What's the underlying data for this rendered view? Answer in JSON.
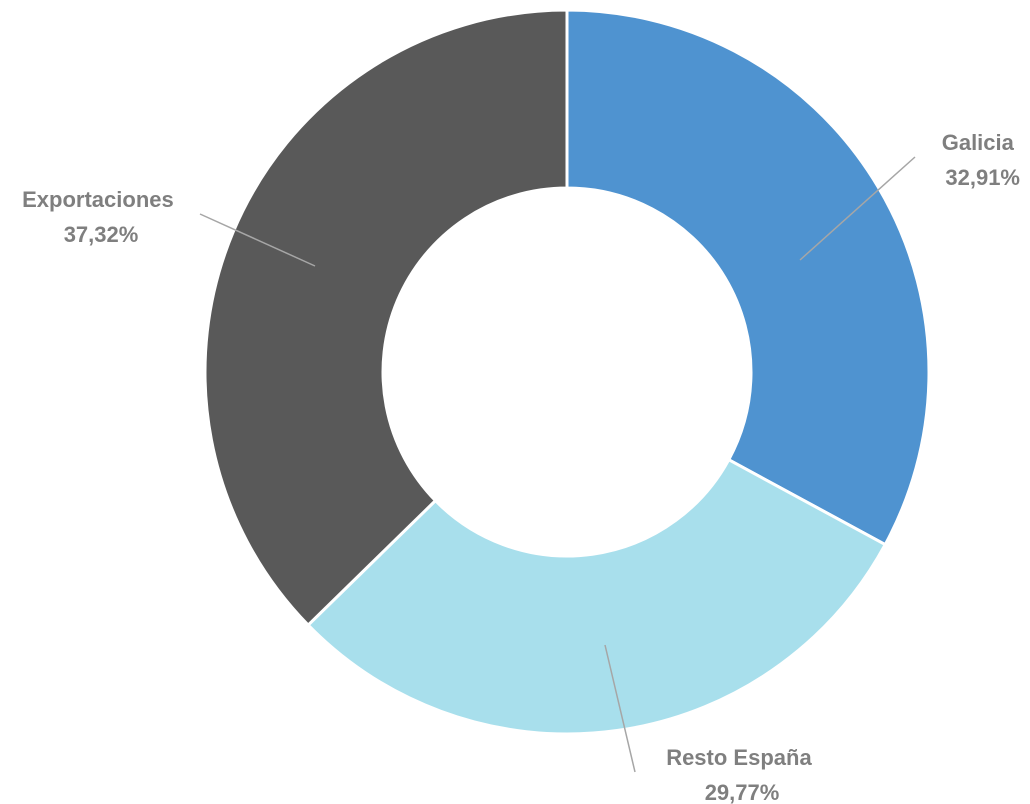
{
  "chart_data": {
    "type": "pie",
    "donut": true,
    "title": "",
    "legend": "none",
    "slices": [
      {
        "label": "Galicia",
        "value": 32.91,
        "value_text": "32,91%",
        "color": "#4f93d0"
      },
      {
        "label": "Resto España",
        "value": 29.77,
        "value_text": "29,77%",
        "color": "#a8dfec"
      },
      {
        "label": "Exportaciones",
        "value": 37.32,
        "value_text": "37,32%",
        "color": "#595959"
      }
    ]
  }
}
